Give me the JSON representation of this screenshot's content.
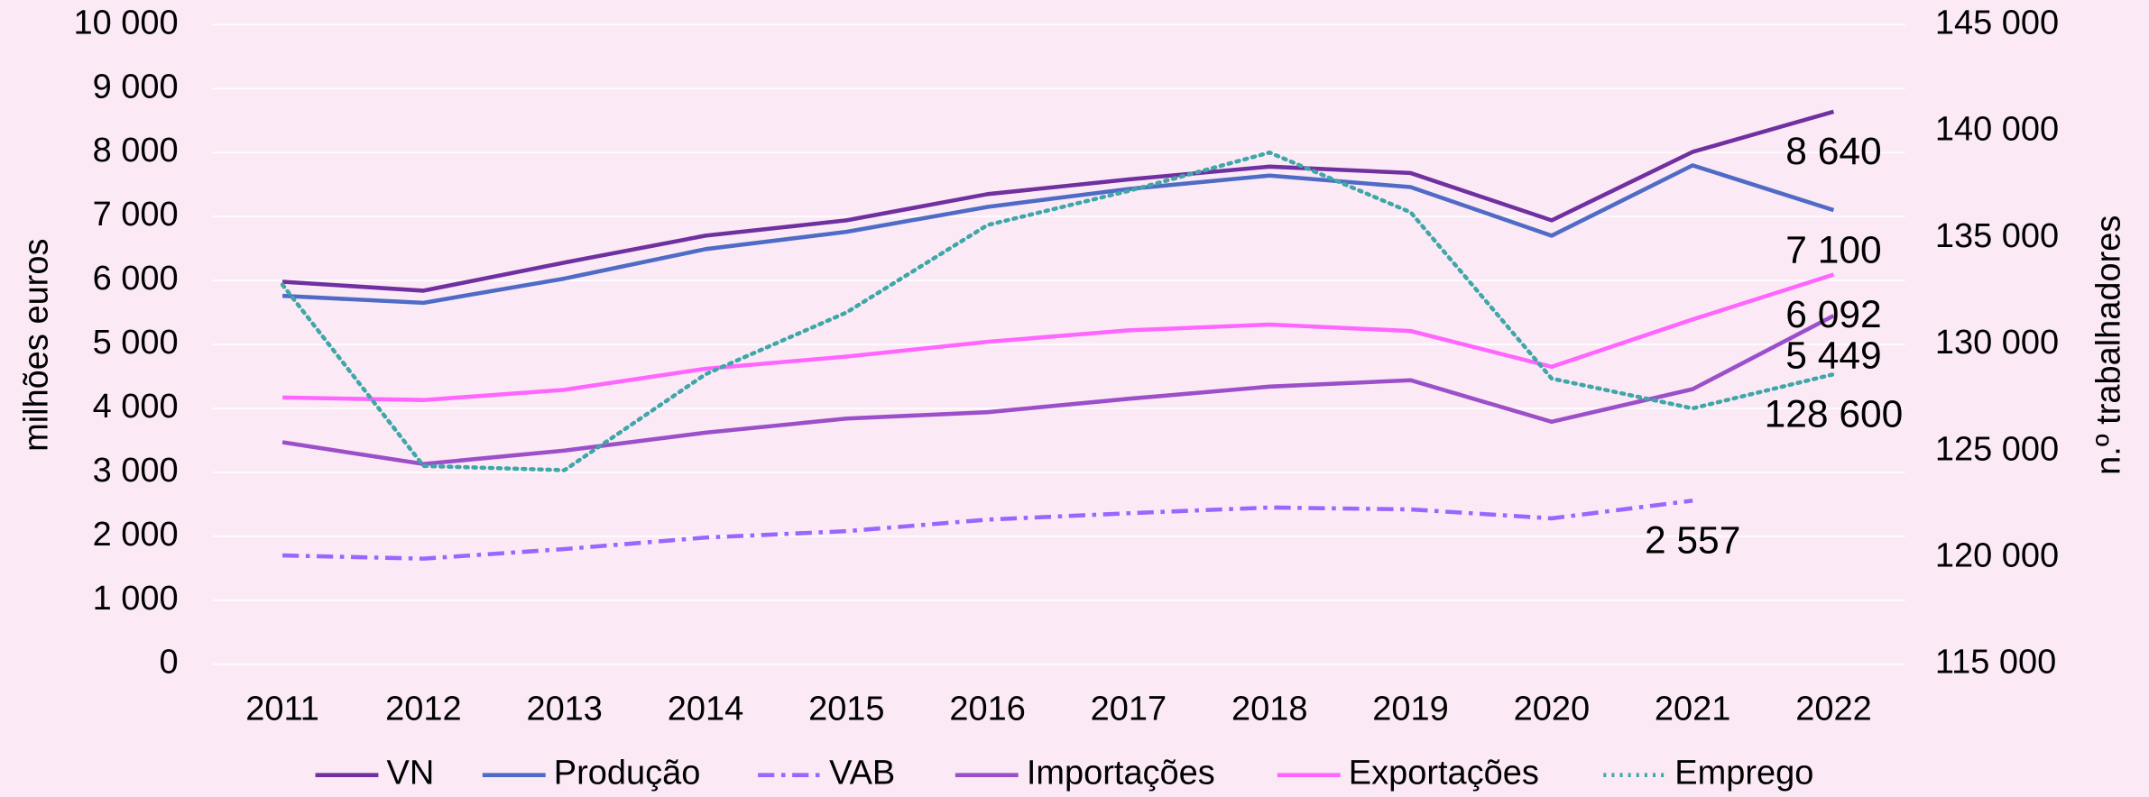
{
  "chart_data": {
    "type": "line",
    "categories": [
      "2011",
      "2012",
      "2013",
      "2014",
      "2015",
      "2016",
      "2017",
      "2018",
      "2019",
      "2020",
      "2021",
      "2022"
    ],
    "ylabel": "milhões euros",
    "y2label": "n.º trabalhadores",
    "ylim": [
      0,
      10000
    ],
    "yticks": [
      0,
      {
        "value": 1000,
        "label": "1 000"
      },
      {
        "value": 2000,
        "label": "2 000"
      },
      {
        "value": 3000,
        "label": "3 000"
      },
      {
        "value": 4000,
        "label": "4 000"
      },
      {
        "value": 5000,
        "label": "5 000"
      },
      {
        "value": 6000,
        "label": "6 000"
      },
      {
        "value": 7000,
        "label": "7 000"
      },
      {
        "value": 8000,
        "label": "8 000"
      },
      {
        "value": 9000,
        "label": "9 000"
      },
      {
        "value": 10000,
        "label": "10 000"
      }
    ],
    "y2lim": [
      115000,
      145000
    ],
    "y2ticks": [
      {
        "value": 115000,
        "label": "115 000"
      },
      {
        "value": 120000,
        "label": "120 000"
      },
      {
        "value": 125000,
        "label": "125 000"
      },
      {
        "value": 130000,
        "label": "130 000"
      },
      {
        "value": 135000,
        "label": "135 000"
      },
      {
        "value": 140000,
        "label": "140 000"
      },
      {
        "value": 145000,
        "label": "145 000"
      }
    ],
    "grid": true,
    "legend": "bottom",
    "series": [
      {
        "name": "VN",
        "color": "#7030a0",
        "dash": "solid",
        "values": [
          5980,
          5840,
          6280,
          6700,
          6940,
          7350,
          7580,
          7780,
          7680,
          6940,
          8010,
          8640
        ],
        "value_labels": [
          null,
          null,
          null,
          null,
          null,
          null,
          null,
          null,
          null,
          null,
          null,
          "8 640"
        ]
      },
      {
        "name": "Produção",
        "color": "#4f6bc6",
        "dash": "solid",
        "values": [
          5760,
          5650,
          6030,
          6490,
          6760,
          7150,
          7430,
          7640,
          7460,
          6700,
          7800,
          7100
        ],
        "value_labels": [
          null,
          null,
          null,
          null,
          null,
          null,
          null,
          null,
          null,
          null,
          null,
          "7 100"
        ]
      },
      {
        "name": "VAB",
        "color": "#9966ff",
        "dash": "dashdot",
        "values": [
          1700,
          1650,
          1800,
          1980,
          2080,
          2260,
          2360,
          2450,
          2420,
          2280,
          2557,
          null
        ],
        "value_labels": [
          null,
          null,
          null,
          null,
          null,
          null,
          null,
          null,
          null,
          null,
          "2 557",
          null
        ]
      },
      {
        "name": "Importações",
        "color": "#9b4fc9",
        "dash": "solid",
        "values": [
          3470,
          3130,
          3340,
          3620,
          3840,
          3940,
          4150,
          4340,
          4440,
          3790,
          4300,
          5449
        ],
        "value_labels": [
          null,
          null,
          null,
          null,
          null,
          null,
          null,
          null,
          null,
          null,
          null,
          "5 449"
        ]
      },
      {
        "name": "Exportações",
        "color": "#ff66ff",
        "dash": "solid",
        "values": [
          4170,
          4130,
          4290,
          4620,
          4810,
          5040,
          5220,
          5310,
          5210,
          4650,
          5390,
          6092
        ],
        "value_labels": [
          null,
          null,
          null,
          null,
          null,
          null,
          null,
          null,
          null,
          null,
          null,
          "6 092"
        ]
      },
      {
        "name": "Emprego",
        "color": "#3fa7a7",
        "dash": "dot",
        "axis": "y2",
        "values": [
          132800,
          124300,
          124100,
          128600,
          131500,
          135600,
          137200,
          139000,
          136200,
          128400,
          127000,
          128600
        ],
        "value_labels": [
          null,
          null,
          null,
          null,
          null,
          null,
          null,
          null,
          null,
          null,
          null,
          "128 600"
        ]
      }
    ]
  }
}
